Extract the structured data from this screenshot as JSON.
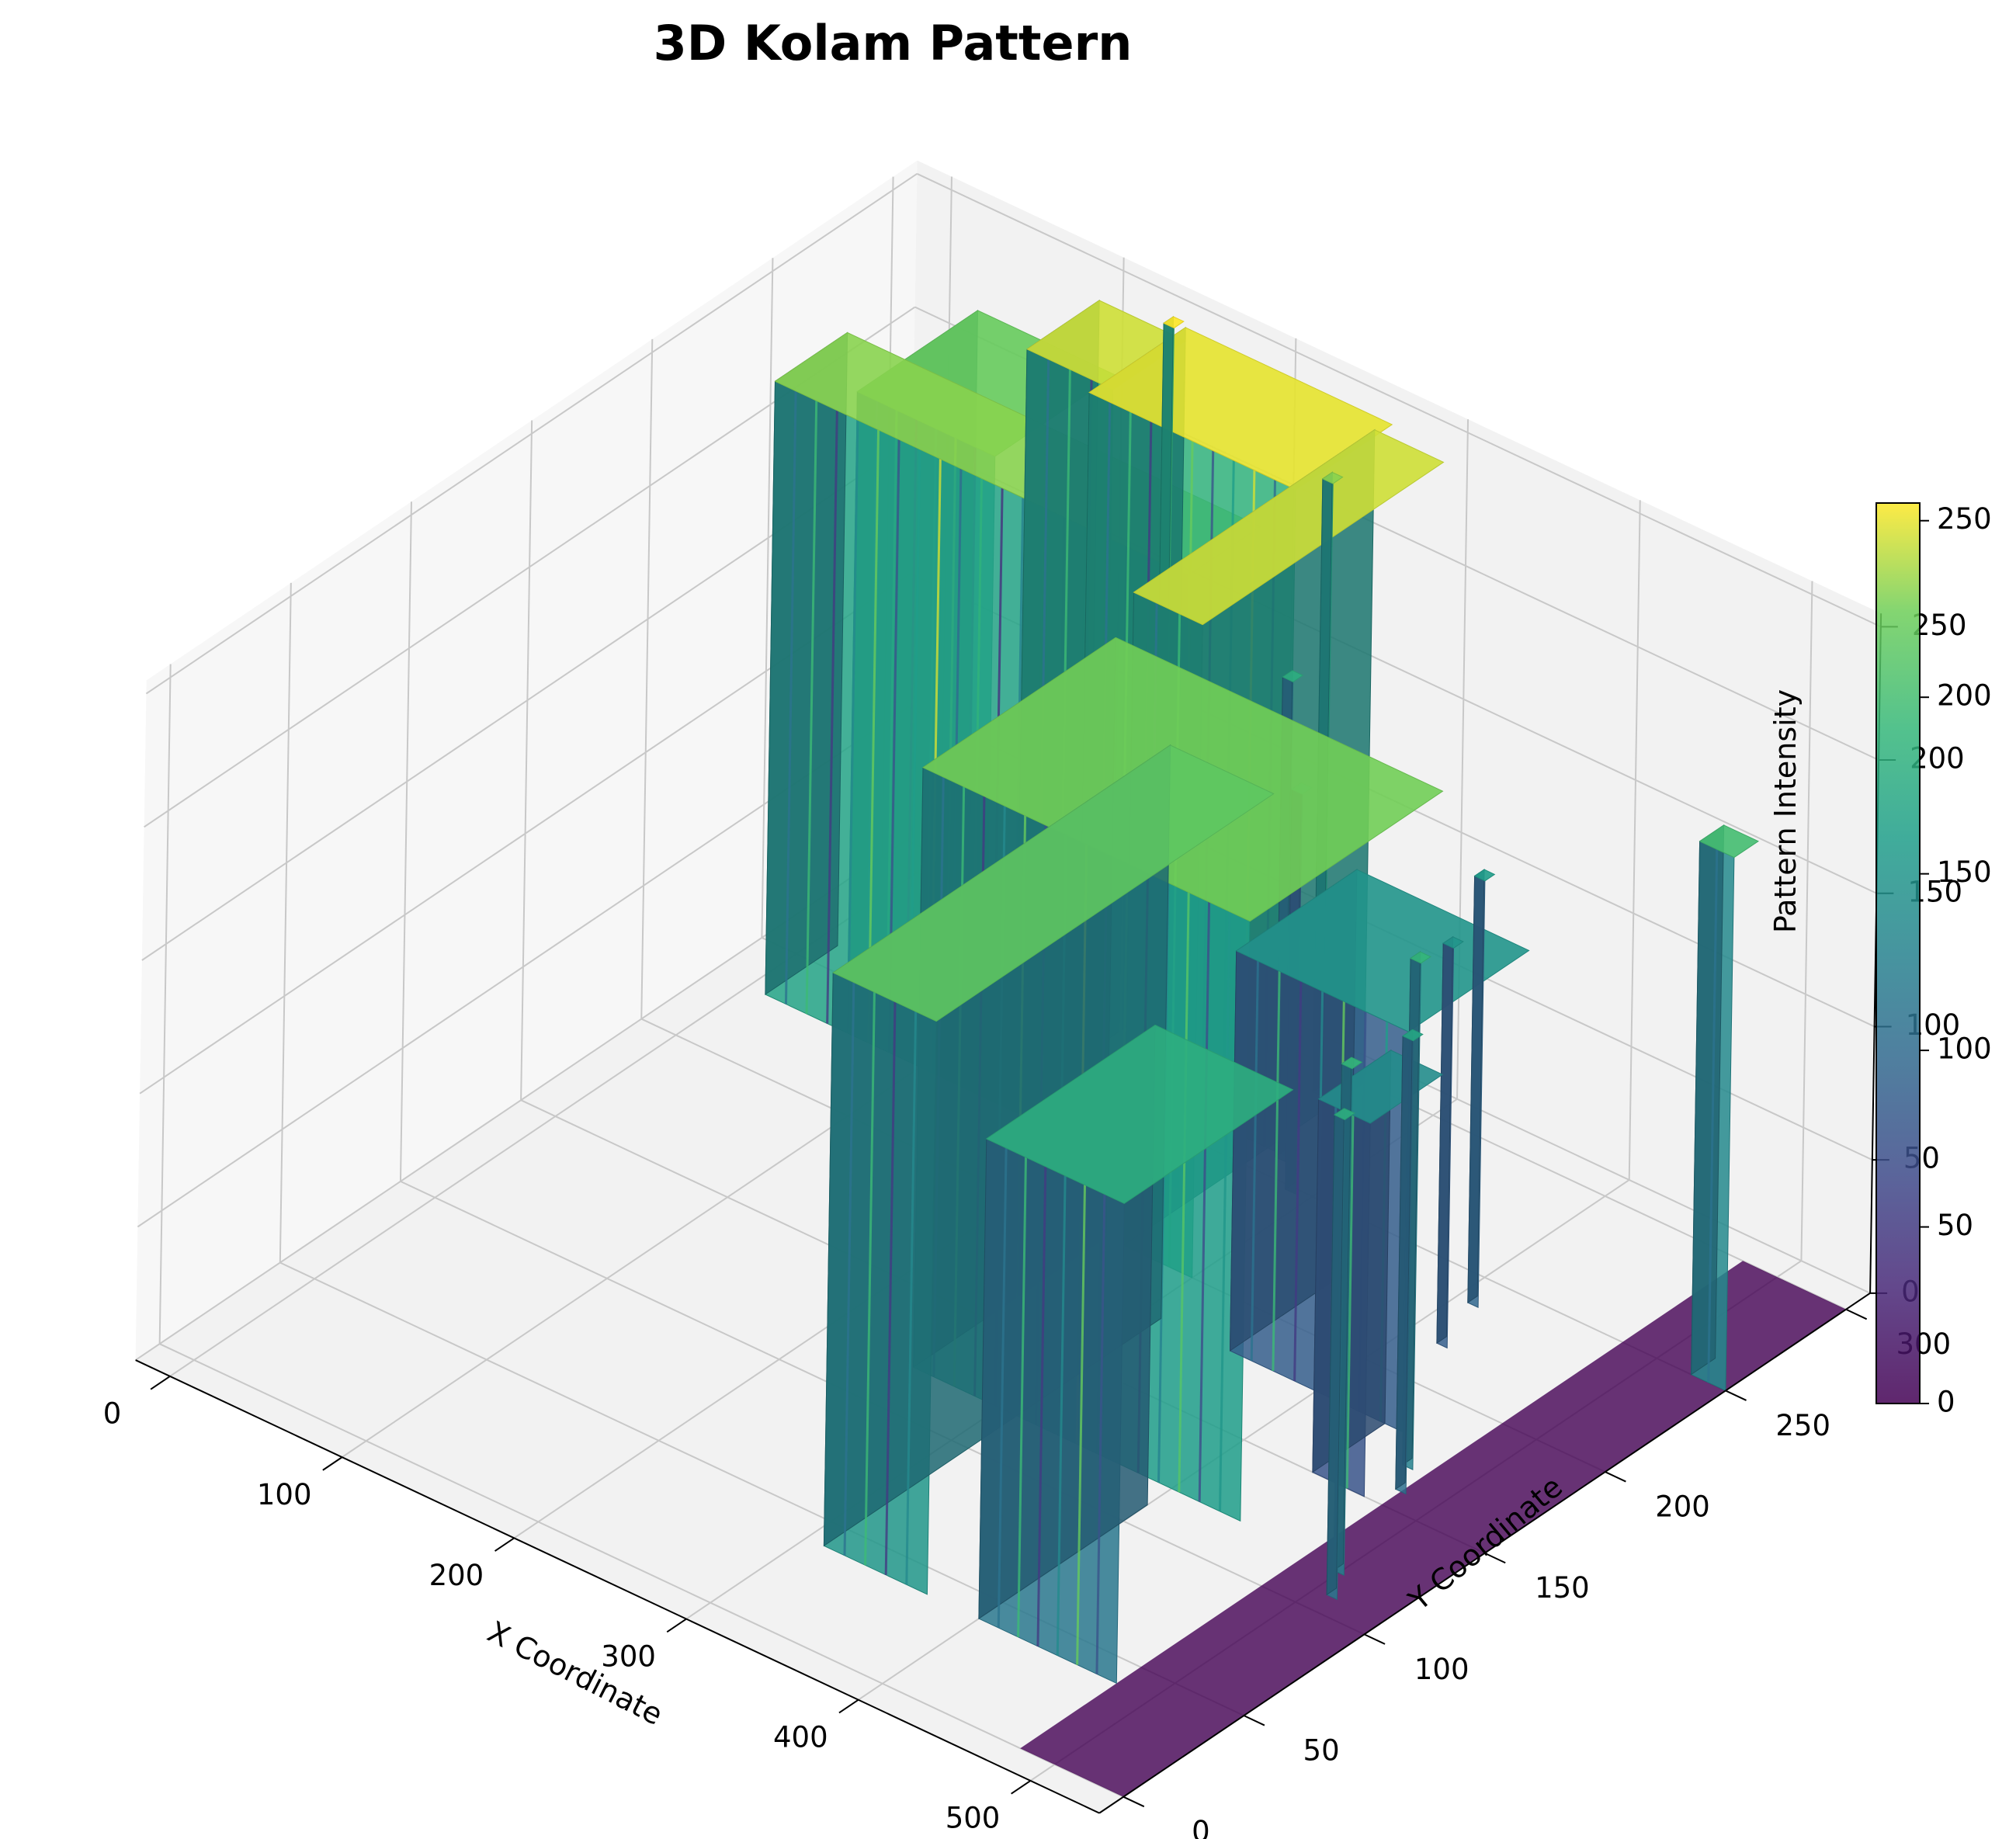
{
  "chart_data": {
    "type": "surface",
    "title": "3D Kolam Pattern",
    "xlabel": "X Coordinate",
    "ylabel": "Y Coordinate",
    "zlabel": "Pattern Intensity",
    "xlim": [
      -20,
      540
    ],
    "ylim": [
      -10,
      310
    ],
    "zlim": [
      0,
      255
    ],
    "x_ticks": [
      0,
      100,
      200,
      300,
      400,
      500
    ],
    "y_ticks": [
      0,
      50,
      100,
      150,
      200,
      250,
      300
    ],
    "z_ticks": [
      0,
      50,
      100,
      150,
      200,
      250
    ],
    "colormap": "viridis",
    "colorbar": {
      "ticks": [
        0,
        50,
        100,
        150,
        200,
        250
      ],
      "range": [
        0,
        255
      ]
    },
    "grid": true,
    "surface_regions": [
      {
        "x": [
          10,
          250
        ],
        "y": [
          230,
          260
        ],
        "z": 230
      },
      {
        "x": [
          150,
          270
        ],
        "y": [
          260,
          300
        ],
        "z": 250
      },
      {
        "x": [
          260,
          300
        ],
        "y": [
          200,
          300
        ],
        "z": 245
      },
      {
        "x": [
          250,
          440
        ],
        "y": [
          120,
          200
        ],
        "z": 225
      },
      {
        "x": [
          310,
          370
        ],
        "y": [
          40,
          180
        ],
        "z": 215
      },
      {
        "x": [
          350,
          450
        ],
        "y": [
          180,
          230
        ],
        "z": 150
      },
      {
        "x": [
          400,
          480
        ],
        "y": [
          40,
          110
        ],
        "z": 180
      },
      {
        "x": [
          30,
          110
        ],
        "y": [
          250,
          300
        ],
        "z": 220
      },
      {
        "x": [
          100,
          150
        ],
        "y": [
          270,
          300
        ],
        "z": 245
      },
      {
        "x": [
          440,
          470
        ],
        "y": [
          150,
          180
        ],
        "z": 140
      },
      {
        "x": [
          520,
          540
        ],
        "y": [
          250,
          260
        ],
        "z": 200
      },
      {
        "x": [
          480,
          540
        ],
        "y": [
          0,
          300
        ],
        "z": 0
      }
    ],
    "spikes": [
      {
        "x": 150,
        "y": 295,
        "z": 255
      },
      {
        "x": 250,
        "y": 290,
        "z": 230
      },
      {
        "x": 270,
        "y": 260,
        "z": 180
      },
      {
        "x": 290,
        "y": 250,
        "z": 150
      },
      {
        "x": 410,
        "y": 240,
        "z": 160
      },
      {
        "x": 420,
        "y": 220,
        "z": 150
      },
      {
        "x": 470,
        "y": 170,
        "z": 190
      },
      {
        "x": 480,
        "y": 160,
        "z": 170
      },
      {
        "x": 500,
        "y": 120,
        "z": 190
      },
      {
        "x": 510,
        "y": 110,
        "z": 180
      }
    ]
  }
}
